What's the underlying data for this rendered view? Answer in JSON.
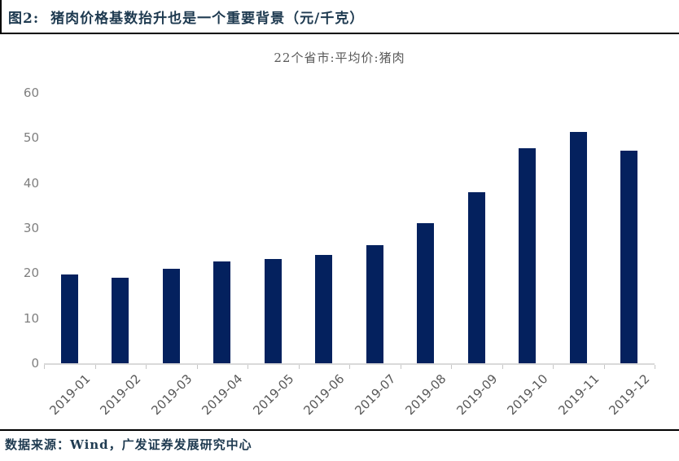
{
  "header": {
    "figure_label": "图2:",
    "title": "猪肉价格基数抬升也是一个重要背景（元/千克）"
  },
  "chart_data": {
    "type": "bar",
    "title": "22个省市:平均价:猪肉",
    "categories": [
      "2019-01",
      "2019-02",
      "2019-03",
      "2019-04",
      "2019-05",
      "2019-06",
      "2019-07",
      "2019-08",
      "2019-09",
      "2019-10",
      "2019-11",
      "2019-12"
    ],
    "values": [
      19.7,
      18.9,
      20.9,
      22.6,
      23.1,
      24.0,
      26.2,
      31.1,
      37.9,
      47.7,
      51.3,
      47.1
    ],
    "xlabel": "",
    "ylabel": "",
    "ylim": [
      0,
      60
    ],
    "yticks": [
      0,
      10,
      20,
      30,
      40,
      50,
      60
    ],
    "grid": false,
    "legend_position": "none",
    "bar_color": "#04215e",
    "axis_line_color": "#d9d9d9",
    "tick_label_color": "#595959",
    "y_label_color": "#7f7f7f"
  },
  "footer": {
    "source": "数据来源：Wind，广发证券发展研究中心"
  },
  "colors": {
    "title_text": "#1e3a50",
    "rule": "#000000",
    "background": "#ffffff"
  }
}
